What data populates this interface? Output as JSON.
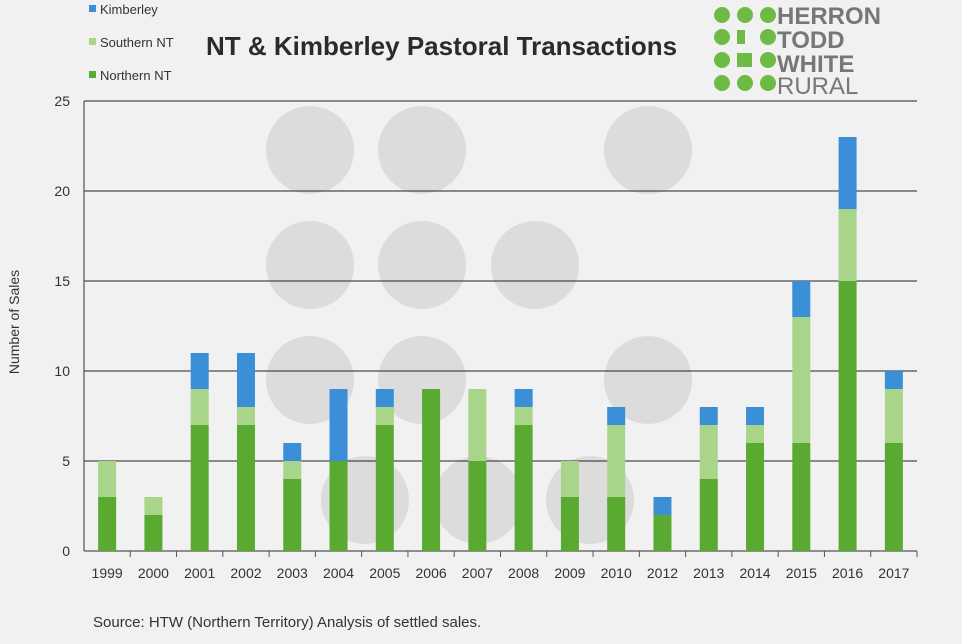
{
  "logo": {
    "lines": [
      "HERRON",
      "TODD",
      "WHITE",
      "RURAL"
    ],
    "color": "#6dbb45",
    "text_color": "#7a7a7a"
  },
  "chart_data": {
    "type": "bar",
    "stacked": true,
    "title": "NT & Kimberley Pastoral Transactions",
    "ylabel": "Number of Sales",
    "xlabel": "",
    "ylim": [
      0,
      25
    ],
    "yticks": [
      0,
      5,
      10,
      15,
      20,
      25
    ],
    "grid": true,
    "legend_position": "top-left",
    "categories": [
      "1999",
      "2000",
      "2001",
      "2002",
      "2003",
      "2004",
      "2005",
      "2006",
      "2007",
      "2008",
      "2009",
      "2010",
      "2012",
      "2013",
      "2014",
      "2015",
      "2016",
      "2017"
    ],
    "series": [
      {
        "name": "Northern NT",
        "color": "#5aaa32",
        "values": [
          3,
          2,
          7,
          7,
          4,
          5,
          7,
          9,
          5,
          7,
          3,
          3,
          2,
          4,
          6,
          6,
          15,
          6
        ]
      },
      {
        "name": "Southern NT",
        "color": "#a8d58a",
        "values": [
          2,
          1,
          2,
          1,
          1,
          0,
          1,
          0,
          4,
          1,
          2,
          4,
          0,
          3,
          1,
          7,
          4,
          3
        ]
      },
      {
        "name": "Kimberley",
        "color": "#3a8fd6",
        "values": [
          0,
          0,
          2,
          3,
          1,
          4,
          1,
          0,
          0,
          1,
          0,
          1,
          1,
          1,
          1,
          2,
          4,
          1
        ]
      }
    ],
    "source": "Source: HTW (Northern Territory) Analysis of settled sales."
  }
}
